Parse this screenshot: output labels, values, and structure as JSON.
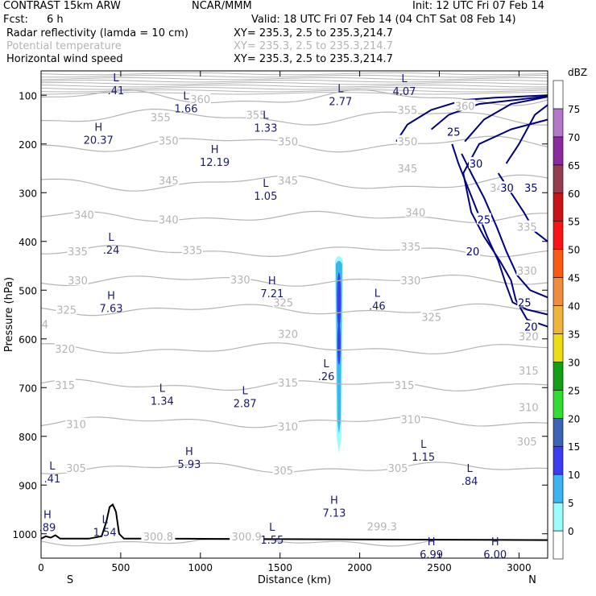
{
  "header": {
    "model": "CONTRAST 15km ARW",
    "center": "NCAR/MMM",
    "init": "Init: 12 UTC Fri 07 Feb 14",
    "fcst_label": "Fcst:",
    "fcst_value": "6 h",
    "valid": "Valid: 18 UTC Fri 07 Feb 14 (04 ChT Sat 08 Feb 14)",
    "fields": [
      {
        "name": "Radar reflectivity (lamda = 10 cm)",
        "xy": "XY= 235.3,  2.5 to 235.3,214.7"
      },
      {
        "name": "Potential temperature",
        "xy": "XY= 235.3,  2.5 to 235.3,214.7"
      },
      {
        "name": "Horizontal wind speed",
        "xy": "XY= 235.3,  2.5 to 235.3,214.7"
      }
    ]
  },
  "colors": {
    "theta": "#b4b4b4",
    "wind": "#000080",
    "terrain": "#000000",
    "hl_labels": "#1a1a6e"
  },
  "chart_data": {
    "type": "contour",
    "xlabel": "Distance (km)",
    "ylabel": "Pressure (hPa)",
    "xlim": [
      0,
      3180
    ],
    "ylim": [
      1050,
      50
    ],
    "x_ticks": [
      0,
      500,
      1000,
      1500,
      2000,
      2500,
      3000
    ],
    "y_ticks": [
      100,
      200,
      300,
      400,
      500,
      600,
      700,
      800,
      900,
      1000
    ],
    "x_end_labels": {
      "left": "S",
      "right": "N"
    },
    "colorbar": {
      "unit": "dBZ",
      "levels": [
        0,
        5,
        10,
        15,
        20,
        25,
        30,
        35,
        40,
        45,
        50,
        55,
        60,
        65,
        70,
        75
      ],
      "colors": [
        "#ffffff",
        "#9cfcfc",
        "#3cb4f0",
        "#3c3cf0",
        "#3c64b4",
        "#32dc32",
        "#14a014",
        "#f0dc14",
        "#f0b43c",
        "#f08c3c",
        "#fa5a14",
        "#fa1414",
        "#c81414",
        "#963c50",
        "#8c28a0",
        "#b478c8",
        "#ffffff"
      ]
    },
    "theta_contours": [
      {
        "level": 300,
        "p": 1015
      },
      {
        "level": 305,
        "p": 865
      },
      {
        "level": 310,
        "p": 770
      },
      {
        "level": 315,
        "p": 695
      },
      {
        "level": 320,
        "p": 620
      },
      {
        "level": 325,
        "p": 540
      },
      {
        "level": 330,
        "p": 480
      },
      {
        "level": 335,
        "p": 420
      },
      {
        "level": 340,
        "p": 350
      },
      {
        "level": 345,
        "p": 280
      },
      {
        "level": 350,
        "p": 200
      },
      {
        "level": 355,
        "p": 145
      },
      {
        "level": 360,
        "p": 105
      }
    ],
    "theta_labels": [
      {
        "text": "360",
        "x": 1000,
        "p": 108
      },
      {
        "text": "355",
        "x": 750,
        "p": 145
      },
      {
        "text": "355",
        "x": 1350,
        "p": 140
      },
      {
        "text": "355",
        "x": 2300,
        "p": 130
      },
      {
        "text": "360",
        "x": 2660,
        "p": 122
      },
      {
        "text": "350",
        "x": 800,
        "p": 193
      },
      {
        "text": "350",
        "x": 1550,
        "p": 195
      },
      {
        "text": "350",
        "x": 2300,
        "p": 195
      },
      {
        "text": "345",
        "x": 800,
        "p": 275
      },
      {
        "text": "345",
        "x": 1550,
        "p": 275
      },
      {
        "text": "345",
        "x": 2300,
        "p": 250
      },
      {
        "text": "340",
        "x": 270,
        "p": 345
      },
      {
        "text": "340",
        "x": 800,
        "p": 355
      },
      {
        "text": "340",
        "x": 2350,
        "p": 340
      },
      {
        "text": "340",
        "x": 2880,
        "p": 290
      },
      {
        "text": "335",
        "x": 230,
        "p": 420
      },
      {
        "text": "335",
        "x": 950,
        "p": 418
      },
      {
        "text": "335",
        "x": 2320,
        "p": 410
      },
      {
        "text": "335",
        "x": 3050,
        "p": 370
      },
      {
        "text": "330",
        "x": 230,
        "p": 480
      },
      {
        "text": "330",
        "x": 1250,
        "p": 478
      },
      {
        "text": "330",
        "x": 2320,
        "p": 480
      },
      {
        "text": "330",
        "x": 3050,
        "p": 460
      },
      {
        "text": "325",
        "x": 160,
        "p": 540
      },
      {
        "text": "325",
        "x": 1520,
        "p": 525
      },
      {
        "text": "325",
        "x": 2450,
        "p": 555
      },
      {
        "text": "320",
        "x": 150,
        "p": 620
      },
      {
        "text": "320",
        "x": 1550,
        "p": 590
      },
      {
        "text": "320",
        "x": 3060,
        "p": 595
      },
      {
        "text": "315",
        "x": 150,
        "p": 695
      },
      {
        "text": "315",
        "x": 1550,
        "p": 690
      },
      {
        "text": "315",
        "x": 2280,
        "p": 695
      },
      {
        "text": "315",
        "x": 3060,
        "p": 665
      },
      {
        "text": "310",
        "x": 220,
        "p": 775
      },
      {
        "text": "310",
        "x": 1550,
        "p": 780
      },
      {
        "text": "310",
        "x": 2320,
        "p": 765
      },
      {
        "text": "310",
        "x": 3060,
        "p": 740
      },
      {
        "text": "305",
        "x": 220,
        "p": 865
      },
      {
        "text": "305",
        "x": 1520,
        "p": 870
      },
      {
        "text": "305",
        "x": 2240,
        "p": 865
      },
      {
        "text": "305",
        "x": 3050,
        "p": 810
      },
      {
        "text": "300.8",
        "x": 735,
        "p": 1005
      },
      {
        "text": "300.9",
        "x": 1290,
        "p": 1005
      },
      {
        "text": "299.3",
        "x": 2140,
        "p": 985
      },
      {
        "text": "4",
        "x": 25,
        "p": 570
      }
    ],
    "wind_contours": [
      20,
      25,
      30,
      35
    ],
    "wind_labels": [
      {
        "text": "25",
        "x": 2590,
        "p": 175
      },
      {
        "text": "30",
        "x": 2730,
        "p": 240
      },
      {
        "text": "30",
        "x": 2925,
        "p": 290
      },
      {
        "text": "35",
        "x": 3075,
        "p": 290
      },
      {
        "text": "25",
        "x": 2780,
        "p": 355
      },
      {
        "text": "20",
        "x": 2710,
        "p": 420
      },
      {
        "text": "25",
        "x": 3035,
        "p": 525
      },
      {
        "text": "20",
        "x": 3075,
        "p": 575
      }
    ],
    "hl_markers": [
      {
        "type": "L",
        "value": ".41",
        "x": 470,
        "p": 78
      },
      {
        "type": "L",
        "value": "1.66",
        "x": 910,
        "p": 115
      },
      {
        "type": "L",
        "value": "2.77",
        "x": 1880,
        "p": 100
      },
      {
        "type": "L",
        "value": "4.07",
        "x": 2280,
        "p": 80
      },
      {
        "type": "L",
        "value": "1.33",
        "x": 1410,
        "p": 155
      },
      {
        "type": "H",
        "value": "20.37",
        "x": 360,
        "p": 180
      },
      {
        "type": "H",
        "value": "12.19",
        "x": 1090,
        "p": 225
      },
      {
        "type": "L",
        "value": "1.05",
        "x": 1410,
        "p": 295
      },
      {
        "type": "L",
        "value": ".24",
        "x": 440,
        "p": 405
      },
      {
        "type": "H",
        "value": "7.21",
        "x": 1450,
        "p": 495
      },
      {
        "type": "H",
        "value": "7.63",
        "x": 440,
        "p": 525
      },
      {
        "type": "L",
        "value": ".46",
        "x": 2110,
        "p": 520
      },
      {
        "type": "L",
        "value": ".26",
        "x": 1790,
        "p": 665
      },
      {
        "type": "L",
        "value": "1.34",
        "x": 760,
        "p": 715
      },
      {
        "type": "L",
        "value": "2.87",
        "x": 1280,
        "p": 720
      },
      {
        "type": "H",
        "value": "5.93",
        "x": 930,
        "p": 845
      },
      {
        "type": "L",
        "value": "1.15",
        "x": 2400,
        "p": 830
      },
      {
        "type": "L",
        "value": ".41",
        "x": 70,
        "p": 875
      },
      {
        "type": "L",
        "value": ".84",
        "x": 2690,
        "p": 880
      },
      {
        "type": "H",
        "value": "7.13",
        "x": 1840,
        "p": 945
      },
      {
        "type": "H",
        "value": ".89",
        "x": 40,
        "p": 975
      },
      {
        "type": "L",
        "value": "1.54",
        "x": 400,
        "p": 985
      },
      {
        "type": "L",
        "value": "1.55",
        "x": 1450,
        "p": 1000
      },
      {
        "type": "H",
        "value": "6.99",
        "x": 2450,
        "p": 1030
      },
      {
        "type": "H",
        "value": "6.00",
        "x": 2850,
        "p": 1030
      }
    ],
    "terrain_pressure": [
      [
        0,
        1010
      ],
      [
        30,
        1005
      ],
      [
        60,
        1008
      ],
      [
        90,
        1003
      ],
      [
        120,
        1010
      ],
      [
        300,
        1010
      ],
      [
        380,
        1005
      ],
      [
        410,
        975
      ],
      [
        430,
        945
      ],
      [
        450,
        940
      ],
      [
        470,
        955
      ],
      [
        490,
        1000
      ],
      [
        520,
        1010
      ],
      [
        740,
        1010
      ],
      [
        770,
        1004
      ],
      [
        800,
        1010
      ],
      [
        3180,
        1013
      ]
    ],
    "reflectivity_column": {
      "x": 1870,
      "p_top": 430,
      "p_bottom": 835,
      "max_dbz": 15
    }
  }
}
